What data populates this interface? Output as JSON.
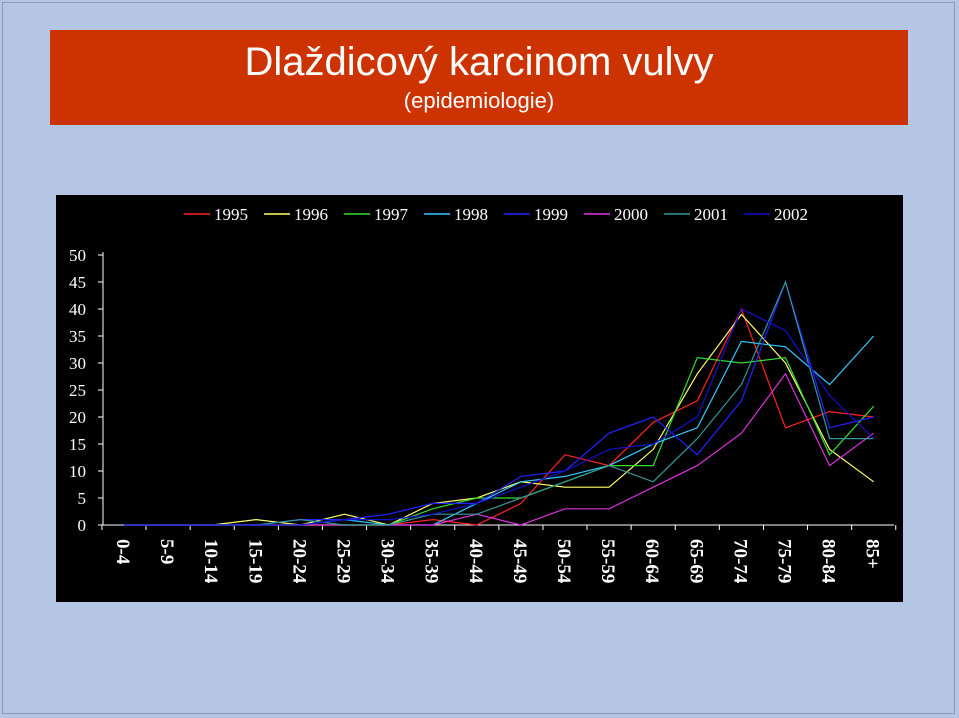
{
  "slide": {
    "title": "Dlaždicový karcinom vulvy",
    "subtitle": "(epidemiologie)"
  },
  "chart_data": {
    "type": "line",
    "categories": [
      "0-4",
      "5-9",
      "10-14",
      "15-19",
      "20-24",
      "25-29",
      "30-34",
      "35-39",
      "40-44",
      "45-49",
      "50-54",
      "55-59",
      "60-64",
      "65-69",
      "70-74",
      "75-79",
      "80-84",
      "85+"
    ],
    "ylim": [
      0,
      50
    ],
    "yticks": [
      "0",
      "5",
      "10",
      "15",
      "20",
      "25",
      "30",
      "35",
      "40",
      "45",
      "50"
    ],
    "grid": false,
    "legend_position": "top",
    "background": "#000000",
    "series": [
      {
        "name": "1995",
        "color": "#ff2222",
        "values": [
          0,
          0,
          0,
          0,
          0,
          0,
          0,
          1,
          0,
          4,
          13,
          11,
          19,
          23,
          40,
          18,
          21,
          20
        ]
      },
      {
        "name": "1996",
        "color": "#ffff66",
        "values": [
          0,
          0,
          0,
          1,
          0,
          2,
          0,
          4,
          5,
          8,
          7,
          7,
          14,
          28,
          39,
          30,
          14,
          8
        ]
      },
      {
        "name": "1997",
        "color": "#33dd33",
        "values": [
          0,
          0,
          0,
          0,
          0,
          0,
          0,
          3,
          5,
          5,
          8,
          11,
          11,
          31,
          30,
          31,
          13,
          22
        ]
      },
      {
        "name": "1998",
        "color": "#33ccff",
        "values": [
          0,
          0,
          0,
          0,
          0,
          1,
          0,
          0,
          4,
          8,
          9,
          11,
          15,
          18,
          34,
          33,
          26,
          35
        ]
      },
      {
        "name": "1999",
        "color": "#2222ff",
        "values": [
          0,
          0,
          0,
          0,
          1,
          1,
          2,
          4,
          4,
          9,
          10,
          17,
          20,
          13,
          23,
          45,
          18,
          20
        ]
      },
      {
        "name": "2000",
        "color": "#dd33dd",
        "values": [
          0,
          0,
          0,
          0,
          0,
          0,
          0,
          0,
          2,
          0,
          3,
          3,
          7,
          11,
          17,
          28,
          11,
          17
        ]
      },
      {
        "name": "2001",
        "color": "#339999",
        "values": [
          0,
          0,
          0,
          0,
          1,
          0,
          0,
          2,
          2,
          5,
          8,
          11,
          8,
          16,
          26,
          45,
          16,
          16
        ]
      },
      {
        "name": "2002",
        "color": "#1111cc",
        "values": [
          0,
          0,
          0,
          0,
          0,
          1,
          1,
          2,
          4,
          7,
          10,
          14,
          15,
          20,
          40,
          36,
          24,
          16
        ]
      }
    ]
  }
}
